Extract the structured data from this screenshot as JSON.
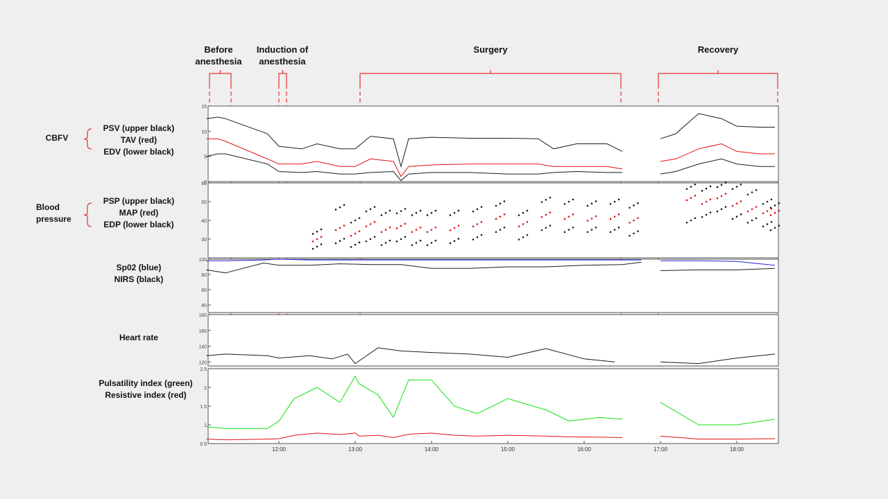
{
  "phases": [
    {
      "name": "Before anesthesia",
      "lines": [
        "Before",
        "anesthesia"
      ]
    },
    {
      "name": "Induction of anesthesia",
      "lines": [
        "Induction of",
        "anesthesia"
      ]
    },
    {
      "name": "Surgery",
      "lines": [
        "Surgery"
      ]
    },
    {
      "name": "Recovery",
      "lines": [
        "Recovery"
      ]
    }
  ],
  "labels": {
    "cbfv_group": "CBFV",
    "cbfv": [
      "PSV (upper black)",
      "TAV (red)",
      "EDV (lower black)"
    ],
    "bp_group": [
      "Blood",
      "pressure"
    ],
    "bp": [
      "PSP (upper black)",
      "MAP (red)",
      "EDP (lower black)"
    ],
    "oxy": [
      "Sp02 (blue)",
      "NIRS (black)"
    ],
    "hr": "Heart rate",
    "pi": [
      "Pulsatility index (green)",
      "Resistive index (red)"
    ]
  },
  "colors": {
    "black": "#1a1a1a",
    "red": "#e01010",
    "blue": "#2323d8",
    "green": "#10e010",
    "gray": "#b4b4b4",
    "phase_marker": "#e53030"
  },
  "chart_data": [
    {
      "type": "line",
      "id": "cbfv",
      "ylim": [
        0,
        15
      ],
      "yticks": [
        "15",
        "10",
        "5",
        "0"
      ],
      "x_hours": [
        11.05,
        11.2,
        11.3,
        11.85,
        12.0,
        12.3,
        12.5,
        12.8,
        13.0,
        13.2,
        13.5,
        13.6,
        13.7,
        14.0,
        14.5,
        15.0,
        15.4,
        15.6,
        15.9,
        16.3,
        16.5
      ],
      "series": [
        {
          "name": "PSV",
          "color": "black",
          "values": [
            12.5,
            12.8,
            12.5,
            9.5,
            7.0,
            6.5,
            7.5,
            6.5,
            6.5,
            9.0,
            8.5,
            3.0,
            8.5,
            8.8,
            8.6,
            8.6,
            8.5,
            6.5,
            7.5,
            7.5,
            6.0
          ]
        },
        {
          "name": "TAV",
          "color": "red",
          "values": [
            8.5,
            8.5,
            8.0,
            4.5,
            3.5,
            3.5,
            4.0,
            3.0,
            3.0,
            4.5,
            4.0,
            1.0,
            3.0,
            3.3,
            3.5,
            3.5,
            3.5,
            3.0,
            3.0,
            3.0,
            2.5
          ]
        },
        {
          "name": "EDV",
          "color": "black",
          "values": [
            5.0,
            5.5,
            5.5,
            3.5,
            2.0,
            1.8,
            2.0,
            1.5,
            1.5,
            1.8,
            2.0,
            0.2,
            1.5,
            1.8,
            1.8,
            1.5,
            1.5,
            1.8,
            2.0,
            1.8,
            1.8
          ]
        }
      ],
      "recovery_x_hours": [
        17.0,
        17.2,
        17.5,
        17.8,
        18.0,
        18.3,
        18.5
      ],
      "recovery_series": [
        {
          "name": "PSV",
          "color": "black",
          "values": [
            8.5,
            9.5,
            13.5,
            12.5,
            11.0,
            10.8,
            10.8
          ]
        },
        {
          "name": "TAV",
          "color": "red",
          "values": [
            4.0,
            4.5,
            6.5,
            7.5,
            6.0,
            5.5,
            5.5
          ]
        },
        {
          "name": "EDV",
          "color": "black",
          "values": [
            1.5,
            2.0,
            3.5,
            4.5,
            3.5,
            3.0,
            3.0
          ]
        }
      ]
    },
    {
      "type": "scatter",
      "id": "bp",
      "ylim": [
        20,
        60
      ],
      "yticks": [
        "60",
        "50",
        "40",
        "30"
      ],
      "x_hours": [
        12.5,
        12.8,
        13.0,
        13.2,
        13.4,
        13.6,
        13.8,
        14.0,
        14.3,
        14.6,
        14.9,
        15.2,
        15.5,
        15.8,
        16.1,
        16.4,
        16.65
      ],
      "series": [
        {
          "name": "PSP",
          "color": "black",
          "values": [
            34,
            47,
            40,
            46,
            44,
            45,
            44,
            44,
            44,
            46,
            49,
            44,
            51,
            50,
            49,
            50,
            48
          ]
        },
        {
          "name": "MAP",
          "color": "red",
          "values": [
            30,
            36,
            33,
            38,
            35,
            37,
            35,
            35,
            36,
            38,
            42,
            38,
            43,
            42,
            41,
            42,
            40
          ]
        },
        {
          "name": "EDP",
          "color": "black",
          "values": [
            26,
            29,
            27,
            30,
            28,
            30,
            28,
            28,
            29,
            31,
            35,
            31,
            36,
            35,
            35,
            35,
            33
          ]
        }
      ],
      "recovery_x_hours": [
        17.4,
        17.6,
        17.8,
        18.0,
        18.2,
        18.4,
        18.5
      ],
      "recovery_series": [
        {
          "name": "PSP",
          "color": "black",
          "values": [
            58,
            57,
            59,
            58,
            55,
            50,
            48
          ]
        },
        {
          "name": "MAP",
          "color": "red",
          "values": [
            52,
            50,
            53,
            49,
            46,
            45,
            44
          ]
        },
        {
          "name": "EDP",
          "color": "black",
          "values": [
            40,
            43,
            46,
            42,
            40,
            38,
            36
          ]
        }
      ]
    },
    {
      "type": "line",
      "id": "oxy",
      "ylim": [
        30,
        100
      ],
      "yticks": [
        "100",
        "80",
        "60",
        "40"
      ],
      "x_hours": [
        11.05,
        11.3,
        11.8,
        12.0,
        12.4,
        12.8,
        13.2,
        13.6,
        14.0,
        14.5,
        15.0,
        15.5,
        16.0,
        16.5,
        16.75
      ],
      "series": [
        {
          "name": "SpO2",
          "color": "blue",
          "values": [
            98,
            98,
            99,
            100,
            99,
            99,
            99,
            99,
            99,
            99,
            99,
            99,
            99,
            99,
            99
          ]
        },
        {
          "name": "NIRS",
          "color": "black",
          "values": [
            86,
            82,
            95,
            92,
            92,
            94,
            93,
            93,
            88,
            88,
            90,
            90,
            92,
            93,
            96
          ]
        }
      ],
      "recovery_x_hours": [
        17.0,
        17.5,
        18.0,
        18.5
      ],
      "recovery_series": [
        {
          "name": "SpO2",
          "color": "blue",
          "values": [
            98,
            98,
            97,
            92
          ]
        },
        {
          "name": "NIRS",
          "color": "black",
          "values": [
            85,
            86,
            86,
            88
          ]
        }
      ]
    },
    {
      "type": "line",
      "id": "hr",
      "ylim": [
        115,
        180
      ],
      "yticks": [
        "180",
        "160",
        "140",
        "120"
      ],
      "x_hours": [
        11.05,
        11.3,
        11.85,
        12.0,
        12.4,
        12.7,
        12.9,
        13.0,
        13.3,
        13.6,
        14.0,
        14.5,
        15.0,
        15.5,
        16.0,
        16.4
      ],
      "series": [
        {
          "name": "Heart rate",
          "color": "black",
          "values": [
            128,
            130,
            128,
            125,
            128,
            124,
            130,
            118,
            138,
            134,
            132,
            130,
            126,
            137,
            124,
            120
          ]
        }
      ],
      "recovery_x_hours": [
        17.0,
        17.5,
        18.0,
        18.5
      ],
      "recovery_series": [
        {
          "name": "Heart rate",
          "color": "black",
          "values": [
            120,
            118,
            125,
            130
          ]
        }
      ]
    },
    {
      "type": "line",
      "id": "pi",
      "ylim": [
        0.5,
        2.5
      ],
      "yticks": [
        "2.5",
        "2",
        "1.5",
        "1",
        "0.5"
      ],
      "x_hours": [
        11.05,
        11.3,
        11.85,
        12.0,
        12.2,
        12.5,
        12.8,
        13.0,
        13.05,
        13.3,
        13.5,
        13.7,
        14.0,
        14.3,
        14.6,
        15.0,
        15.5,
        15.8,
        16.2,
        16.5
      ],
      "series": [
        {
          "name": "Pulsatility index",
          "color": "green",
          "values": [
            0.95,
            0.9,
            0.9,
            1.1,
            1.7,
            2.0,
            1.6,
            2.3,
            2.1,
            1.8,
            1.2,
            2.2,
            2.2,
            1.5,
            1.3,
            1.7,
            1.4,
            1.1,
            1.2,
            1.15
          ]
        },
        {
          "name": "Resistive index",
          "color": "red",
          "values": [
            0.62,
            0.6,
            0.62,
            0.63,
            0.72,
            0.78,
            0.74,
            0.78,
            0.7,
            0.72,
            0.66,
            0.75,
            0.78,
            0.72,
            0.7,
            0.72,
            0.7,
            0.68,
            0.67,
            0.66
          ]
        }
      ],
      "recovery_x_hours": [
        17.0,
        17.5,
        18.0,
        18.5
      ],
      "recovery_series": [
        {
          "name": "Pulsatility index",
          "color": "green",
          "values": [
            1.6,
            1.0,
            1.0,
            1.15
          ]
        },
        {
          "name": "Resistive index",
          "color": "red",
          "values": [
            0.7,
            0.62,
            0.62,
            0.63
          ]
        }
      ]
    }
  ],
  "x_axis": {
    "ticks": [
      "12:00",
      "13:00",
      "14:00",
      "15:00",
      "16:00",
      "17:00",
      "18:00"
    ],
    "tick_hours": [
      12,
      13,
      14,
      15,
      16,
      17,
      18
    ]
  }
}
